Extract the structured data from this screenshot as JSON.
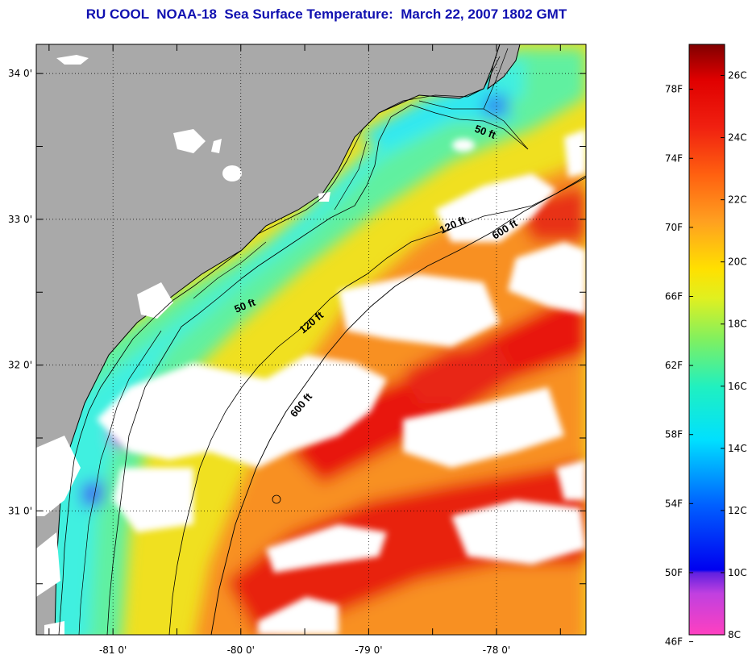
{
  "title": "RU COOL  NOAA-18  Sea Surface Temperature:  March 22, 2007 1802 GMT",
  "map": {
    "lat_labels": [
      {
        "value": 34,
        "label": "34 0'"
      },
      {
        "value": 33,
        "label": "33 0'"
      },
      {
        "value": 32,
        "label": "32 0'"
      },
      {
        "value": 31,
        "label": "31 0'"
      }
    ],
    "lon_labels": [
      {
        "value": -81,
        "label": "-81 0'"
      },
      {
        "value": -80,
        "label": "-80 0'"
      },
      {
        "value": -79,
        "label": "-79 0'"
      },
      {
        "value": -78,
        "label": "-78 0'"
      }
    ],
    "lat_range": [
      30.15,
      34.2
    ],
    "lon_range": [
      -81.6,
      -77.3
    ],
    "contour_labels": [
      "50 ft",
      "50 ft",
      "120 ft",
      "120 ft",
      "600 ft",
      "600 ft"
    ],
    "colors": {
      "land": "#a9a9a9",
      "cloud": "#ffffff",
      "coast": "#000000"
    }
  },
  "colorbar": {
    "fahrenheit": [
      "78F",
      "74F",
      "70F",
      "66F",
      "62F",
      "58F",
      "54F",
      "50F",
      "46F"
    ],
    "celsius": [
      "26C",
      "24C",
      "22C",
      "20C",
      "18C",
      "16C",
      "14C",
      "12C",
      "10C",
      "8C"
    ],
    "range_c": [
      8,
      27
    ]
  }
}
